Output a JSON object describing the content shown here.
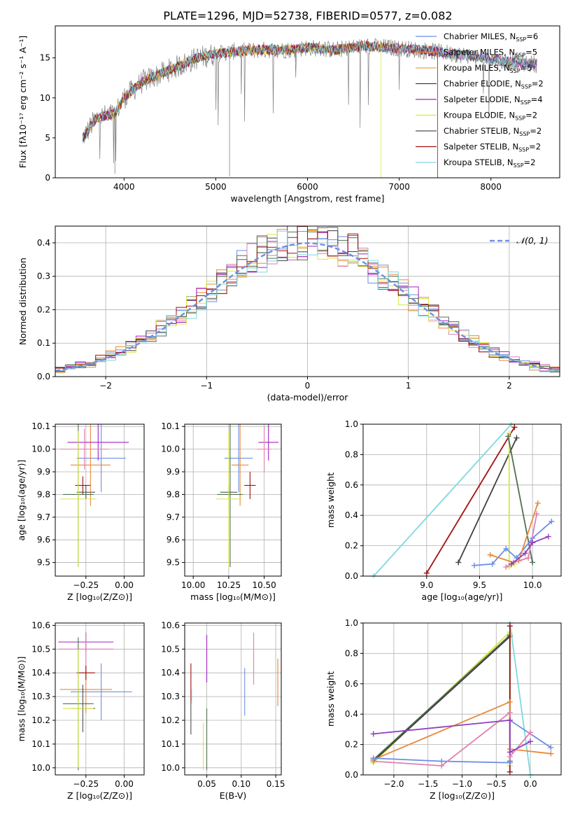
{
  "figure_title": "PLATE=1296, MJD=52738, FIBERID=0577, z=0.082",
  "colors": {
    "chabrier_miles": "#6b8fe6",
    "salpeter_miles": "#e8883a",
    "kroupa_miles": "#f0a040",
    "chabrier_elodie": "#404040",
    "salpeter_elodie": "#a020c0",
    "kroupa_elodie": "#d8e840",
    "chabrier_stelib": "#505050",
    "salpeter_stelib": "#a01010",
    "kroupa_stelib": "#80d8e0",
    "pink": "#e080b0",
    "green": "#507050",
    "purple": "#9040c0"
  },
  "chart_data": [
    {
      "id": "spectrum",
      "type": "line",
      "xlabel": "wavelength [Angstrom, rest frame]",
      "ylabel": "Flux [fλ10⁻¹⁷ erg cm⁻² s⁻¹ A⁻¹]",
      "xlim": [
        3250,
        8750
      ],
      "ylim": [
        0,
        19
      ],
      "xticks": [
        "4000",
        "5000",
        "6000",
        "7000",
        "8000"
      ],
      "yticks": [
        "0",
        "5",
        "10",
        "15"
      ],
      "legend_position": "right",
      "legend": [
        {
          "label": "Chabrier MILES, N",
          "sub": "SSP",
          "tail": "=6",
          "color": "#6b8fe6"
        },
        {
          "label": "Salpeter MILES, N",
          "sub": "SSP",
          "tail": "=5",
          "color": "#e8883a"
        },
        {
          "label": "Kroupa MILES, N",
          "sub": "SSP",
          "tail": "=5",
          "color": "#f0a040"
        },
        {
          "label": "Chabrier ELODIE, N",
          "sub": "SSP",
          "tail": "=2",
          "color": "#404040"
        },
        {
          "label": "Salpeter ELODIE, N",
          "sub": "SSP",
          "tail": "=4",
          "color": "#a020c0"
        },
        {
          "label": "Kroupa ELODIE, N",
          "sub": "SSP",
          "tail": "=2",
          "color": "#d8e840"
        },
        {
          "label": "Chabrier STELIB, N",
          "sub": "SSP",
          "tail": "=2",
          "color": "#505050"
        },
        {
          "label": "Salpeter STELIB, N",
          "sub": "SSP",
          "tail": "=2",
          "color": "#a01010"
        },
        {
          "label": "Kroupa STELIB, N",
          "sub": "SSP",
          "tail": "=2",
          "color": "#80d8e0"
        }
      ],
      "continuum": {
        "x": [
          3550,
          3700,
          3900,
          4000,
          4200,
          4400,
          4600,
          4800,
          5000,
          5200,
          5500,
          5800,
          6000,
          6300,
          6600,
          7000,
          7400,
          7800,
          8200,
          8500
        ],
        "y": [
          5,
          7.5,
          8,
          10,
          12,
          13,
          14,
          15,
          15.5,
          15.8,
          16,
          16,
          16.3,
          16,
          16.5,
          16.2,
          15.8,
          15.2,
          14.5,
          14.2
        ]
      }
    },
    {
      "id": "residuals",
      "type": "histogram",
      "xlabel": "(data-model)/error",
      "ylabel": "Normed distribution",
      "xlim": [
        -2.5,
        2.5
      ],
      "ylim": [
        0,
        0.45
      ],
      "xticks": [
        "−2",
        "−1",
        "0",
        "1",
        "2"
      ],
      "yticks": [
        "0.0",
        "0.1",
        "0.2",
        "0.3",
        "0.4"
      ],
      "grid": true,
      "legend_position": "top-right",
      "legend_label": "𝒩(0, 1)",
      "reference_curve": {
        "type": "gaussian",
        "mean": 0,
        "sigma": 1,
        "color": "#6b8fe6"
      },
      "bin_width": 0.1
    },
    {
      "id": "age_vs_Z",
      "type": "scatter",
      "xlabel": "Z [log₁₀(Z/Z⊙)]",
      "ylabel": "age  [log₁₀(age/yr)]",
      "xlim": [
        -0.45,
        0.13
      ],
      "ylim": [
        9.44,
        10.11
      ],
      "xticks": [
        -0.25,
        0.0
      ],
      "xtick_labels": [
        "−0.25",
        "0.00"
      ],
      "yticks": [
        9.5,
        9.6,
        9.7,
        9.8,
        9.9,
        10.0,
        10.1
      ],
      "points": [
        {
          "x": -0.15,
          "y": 9.96,
          "xerr": 0.16,
          "yerr": 0.15,
          "color": "#6b8fe6"
        },
        {
          "x": -0.22,
          "y": 9.93,
          "xerr": 0.13,
          "yerr": 0.18,
          "color": "#e8883a"
        },
        {
          "x": -0.17,
          "y": 10.03,
          "xerr": 0.2,
          "yerr": 0.08,
          "color": "#a020c0"
        },
        {
          "x": -0.26,
          "y": 10.0,
          "xerr": 0.16,
          "yerr": 0.09,
          "color": "#e080b0"
        },
        {
          "x": -0.25,
          "y": 9.81,
          "xerr": 0.06,
          "yerr": 0.03,
          "color": "#505050"
        },
        {
          "x": -0.27,
          "y": 9.84,
          "xerr": 0.05,
          "yerr": 0.04,
          "color": "#a01010"
        },
        {
          "x": -0.3,
          "y": 9.8,
          "xerr": 0.1,
          "yerr": 0.32,
          "color": "#507050"
        },
        {
          "x": -0.3,
          "y": 9.78,
          "xerr": 0.12,
          "yerr": 0.3,
          "color": "#d8e840"
        }
      ]
    },
    {
      "id": "age_vs_mass",
      "type": "scatter",
      "xlabel": "mass [log₁₀(M/M⊙)]",
      "ylabel": "",
      "xlim": [
        9.94,
        10.62
      ],
      "ylim": [
        9.44,
        10.11
      ],
      "xticks": [
        10.0,
        10.25,
        10.5
      ],
      "xtick_labels": [
        "10.00",
        "10.25",
        "10.50"
      ],
      "yticks": [
        9.5,
        9.6,
        9.7,
        9.8,
        9.9,
        10.0,
        10.1
      ],
      "points": [
        {
          "x": 10.32,
          "y": 9.96,
          "xerr": 0.1,
          "yerr": 0.15,
          "color": "#6b8fe6"
        },
        {
          "x": 10.33,
          "y": 9.93,
          "xerr": 0.06,
          "yerr": 0.18,
          "color": "#e8883a"
        },
        {
          "x": 10.53,
          "y": 10.03,
          "xerr": 0.07,
          "yerr": 0.08,
          "color": "#a020c0"
        },
        {
          "x": 10.5,
          "y": 10.0,
          "xerr": 0.05,
          "yerr": 0.1,
          "color": "#e080b0"
        },
        {
          "x": 10.25,
          "y": 9.81,
          "xerr": 0.06,
          "yerr": 0.03,
          "color": "#505050"
        },
        {
          "x": 10.4,
          "y": 9.84,
          "xerr": 0.04,
          "yerr": 0.06,
          "color": "#a01010"
        },
        {
          "x": 10.26,
          "y": 9.8,
          "xerr": 0.09,
          "yerr": 0.32,
          "color": "#507050"
        },
        {
          "x": 10.25,
          "y": 9.78,
          "xerr": 0.09,
          "yerr": 0.3,
          "color": "#d8e840"
        }
      ]
    },
    {
      "id": "weight_vs_age",
      "type": "line",
      "xlabel": "age  [log₁₀(age/yr)]",
      "ylabel": "mass weight",
      "xlim": [
        8.4,
        10.27
      ],
      "ylim": [
        0,
        1
      ],
      "xticks": [
        9.0,
        9.5,
        10.0
      ],
      "xtick_labels": [
        "9.0",
        "9.5",
        "10.0"
      ],
      "yticks": [
        0.0,
        0.2,
        0.4,
        0.6,
        0.8,
        1.0
      ],
      "ytick_labels": [
        "0.0",
        "0.2",
        "0.4",
        "0.6",
        "0.8",
        "1.0"
      ],
      "grid": true,
      "series": [
        {
          "color": "#80d8e0",
          "x": [
            8.5,
            9.8
          ],
          "y": [
            0.0,
            1.0
          ]
        },
        {
          "color": "#a01010",
          "x": [
            9.0,
            9.83
          ],
          "y": [
            0.02,
            0.98
          ]
        },
        {
          "color": "#404040",
          "x": [
            9.3,
            9.85
          ],
          "y": [
            0.09,
            0.91
          ]
        },
        {
          "color": "#d8e840",
          "x": [
            9.78,
            9.78,
            9.83
          ],
          "y": [
            0.94,
            0.06,
            0.08
          ]
        },
        {
          "color": "#507050",
          "x": [
            9.77,
            10.0
          ],
          "y": [
            0.92,
            0.09
          ]
        },
        {
          "color": "#6b8fe6",
          "x": [
            9.45,
            9.62,
            9.75,
            9.85,
            10.0,
            10.18
          ],
          "y": [
            0.07,
            0.08,
            0.18,
            0.12,
            0.25,
            0.36
          ]
        },
        {
          "color": "#e8883a",
          "x": [
            9.6,
            9.82,
            9.87,
            10.05
          ],
          "y": [
            0.14,
            0.09,
            0.1,
            0.48
          ]
        },
        {
          "color": "#e080b0",
          "x": [
            9.75,
            9.82,
            9.96,
            10.04
          ],
          "y": [
            0.06,
            0.09,
            0.12,
            0.41
          ]
        },
        {
          "color": "#9040c0",
          "x": [
            9.8,
            9.93,
            10.0,
            10.15
          ],
          "y": [
            0.08,
            0.15,
            0.22,
            0.26
          ]
        }
      ]
    },
    {
      "id": "mass_vs_Z",
      "type": "scatter",
      "xlabel": "Z [log₁₀(Z/Z⊙)]",
      "ylabel": "mass [log₁₀(M/M⊙)]",
      "xlim": [
        -0.45,
        0.13
      ],
      "ylim": [
        9.97,
        10.61
      ],
      "xticks": [
        -0.25,
        0.0
      ],
      "xtick_labels": [
        "−0.25",
        "0.00"
      ],
      "yticks": [
        10.0,
        10.1,
        10.2,
        10.3,
        10.4,
        10.5,
        10.6
      ],
      "points": [
        {
          "x": -0.15,
          "y": 10.32,
          "xerr": 0.2,
          "yerr": 0.12,
          "color": "#6b8fe6"
        },
        {
          "x": -0.25,
          "y": 10.33,
          "xerr": 0.17,
          "yerr": 0.1,
          "color": "#e8883a"
        },
        {
          "x": -0.25,
          "y": 10.53,
          "xerr": 0.18,
          "yerr": 0.04,
          "color": "#a020c0"
        },
        {
          "x": -0.25,
          "y": 10.5,
          "xerr": 0.18,
          "yerr": 0.07,
          "color": "#e080b0"
        },
        {
          "x": -0.27,
          "y": 10.25,
          "xerr": 0.08,
          "yerr": 0.1,
          "color": "#505050"
        },
        {
          "x": -0.25,
          "y": 10.4,
          "xerr": 0.06,
          "yerr": 0.03,
          "color": "#a01010"
        },
        {
          "x": -0.3,
          "y": 10.27,
          "xerr": 0.1,
          "yerr": 0.28,
          "color": "#507050"
        },
        {
          "x": -0.3,
          "y": 10.25,
          "xerr": 0.1,
          "yerr": 0.25,
          "color": "#d8e840"
        }
      ]
    },
    {
      "id": "mass_vs_ebv",
      "type": "scatter",
      "xlabel": "E(B-V)",
      "ylabel": "",
      "xlim": [
        0.018,
        0.158
      ],
      "ylim": [
        9.97,
        10.61
      ],
      "xticks": [
        0.05,
        0.1,
        0.15
      ],
      "xtick_labels": [
        "0.05",
        "0.10",
        "0.15"
      ],
      "yticks": [
        10.0,
        10.1,
        10.2,
        10.3,
        10.4,
        10.5,
        10.6
      ],
      "points": [
        {
          "x": 0.105,
          "y": 10.32,
          "yerr": 0.1,
          "color": "#6b8fe6"
        },
        {
          "x": 0.153,
          "y": 10.36,
          "yerr": 0.1,
          "color": "#e8883a"
        },
        {
          "x": 0.05,
          "y": 10.46,
          "yerr": 0.1,
          "color": "#a020c0"
        },
        {
          "x": 0.118,
          "y": 10.46,
          "yerr": 0.11,
          "color": "#e080b0"
        },
        {
          "x": 0.027,
          "y": 10.21,
          "yerr": 0.07,
          "color": "#505050"
        },
        {
          "x": 0.027,
          "y": 10.36,
          "yerr": 0.08,
          "color": "#a01010"
        },
        {
          "x": 0.028,
          "y": 10.3,
          "yerr": 0.03,
          "color": "#80d8e0"
        },
        {
          "x": 0.05,
          "y": 10.12,
          "yerr": 0.13,
          "color": "#507050"
        },
        {
          "x": 0.045,
          "y": 10.09,
          "yerr": 0.1,
          "color": "#d8e840"
        }
      ]
    },
    {
      "id": "weight_vs_Z",
      "type": "line",
      "xlabel": "Z [log₁₀(Z/Z⊙)]",
      "ylabel": "mass weight",
      "xlim": [
        -2.45,
        0.45
      ],
      "ylim": [
        0,
        1
      ],
      "xticks": [
        -2.0,
        -1.5,
        -1.0,
        -0.5,
        0.0
      ],
      "xtick_labels": [
        "−2.0",
        "−1.5",
        "−1.0",
        "−0.5",
        "0.0"
      ],
      "yticks": [
        0.0,
        0.2,
        0.4,
        0.6,
        0.8,
        1.0
      ],
      "ytick_labels": [
        "0.0",
        "0.2",
        "0.4",
        "0.6",
        "0.8",
        "1.0"
      ],
      "grid": true,
      "series": [
        {
          "color": "#d8e840",
          "x": [
            -2.3,
            -0.3,
            -0.3
          ],
          "y": [
            0.08,
            0.94,
            0.06
          ]
        },
        {
          "color": "#507050",
          "x": [
            -2.3,
            -0.3,
            -0.3
          ],
          "y": [
            0.1,
            0.92,
            0.09
          ]
        },
        {
          "color": "#404040",
          "x": [
            -2.3,
            -0.3
          ],
          "y": [
            0.09,
            0.91
          ]
        },
        {
          "color": "#80d8e0",
          "x": [
            -0.3,
            0.0
          ],
          "y": [
            1.0,
            0.0
          ]
        },
        {
          "color": "#a01010",
          "x": [
            -0.3,
            -0.3
          ],
          "y": [
            0.02,
            0.98
          ]
        },
        {
          "color": "#e8883a",
          "x": [
            -2.3,
            -0.3,
            -0.3,
            0.3
          ],
          "y": [
            0.1,
            0.48,
            0.17,
            0.14
          ]
        },
        {
          "color": "#6b8fe6",
          "x": [
            -2.3,
            -1.3,
            -0.3,
            -0.3,
            0.3
          ],
          "y": [
            0.11,
            0.09,
            0.08,
            0.36,
            0.18
          ]
        },
        {
          "color": "#e080b0",
          "x": [
            -2.3,
            -1.3,
            -0.3,
            -0.3,
            0.0
          ],
          "y": [
            0.09,
            0.06,
            0.41,
            0.12,
            0.28
          ]
        },
        {
          "color": "#9040c0",
          "x": [
            -2.3,
            -0.3,
            -0.3,
            0.0
          ],
          "y": [
            0.27,
            0.36,
            0.15,
            0.22
          ]
        }
      ]
    }
  ]
}
